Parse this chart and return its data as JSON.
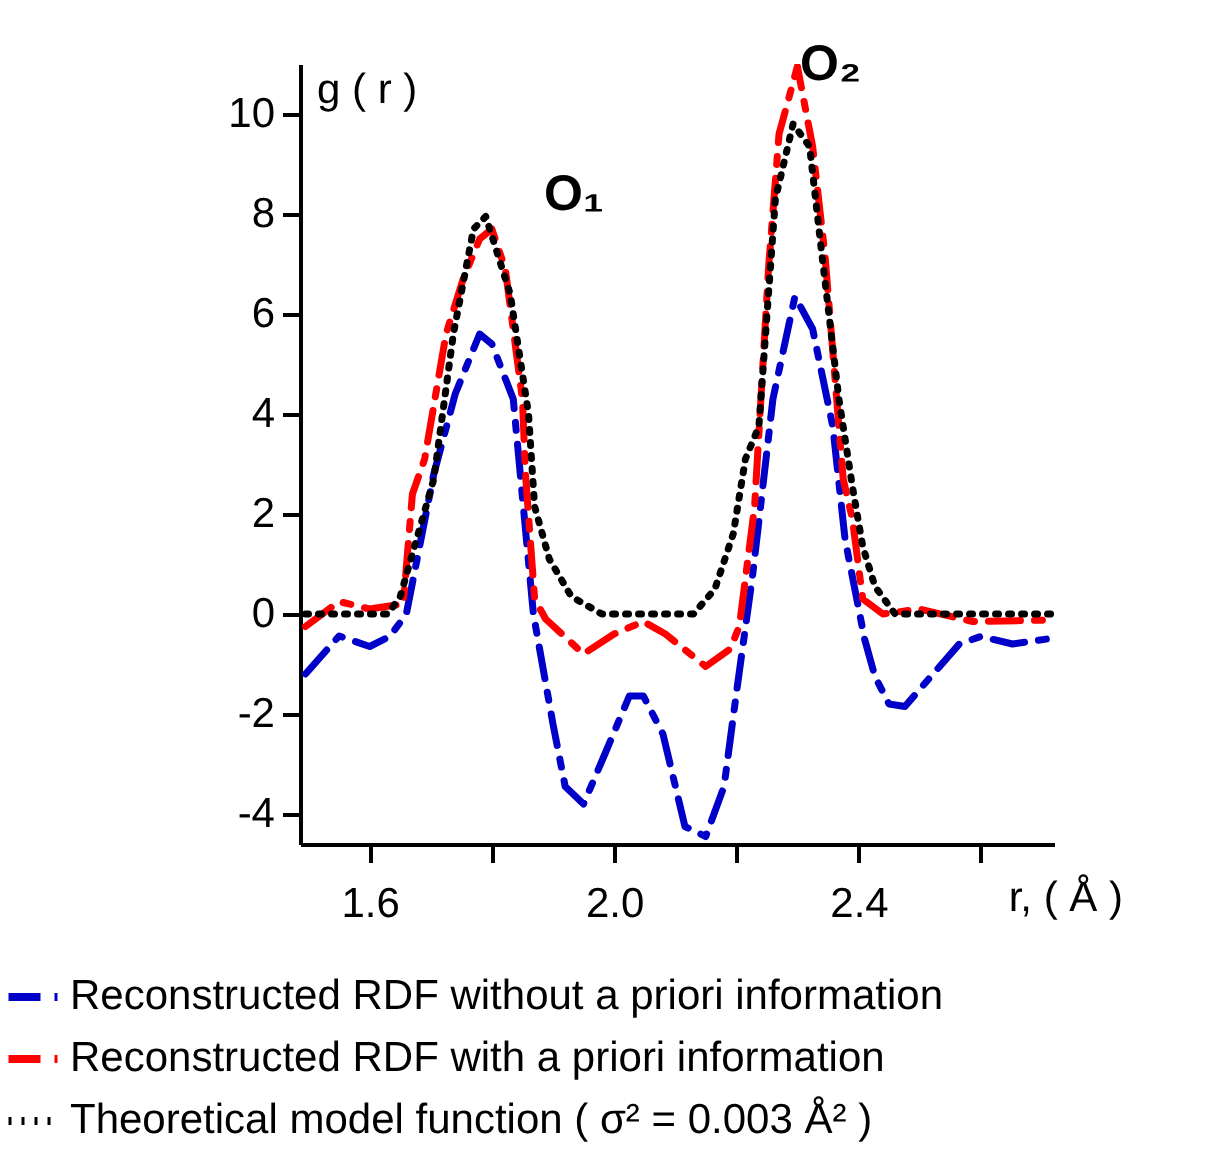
{
  "chart_data": {
    "type": "line",
    "xlabel": "r, ( Å )",
    "ylabel": "g ( r )",
    "xlim": [
      1.486,
      2.72
    ],
    "ylim": [
      -4.6,
      11
    ],
    "xticks": [
      1.6,
      {
        "value": 1.8,
        "label": null
      },
      {
        "value": 2.0,
        "label": "2.0"
      },
      {
        "value": 2.2,
        "label": null
      },
      2.4,
      {
        "value": 2.6,
        "label": null
      }
    ],
    "yticks": [
      -4,
      -2,
      0,
      2,
      4,
      6,
      8,
      10
    ],
    "grid": false,
    "legend": "bottom",
    "marker": "none",
    "annotations": [
      "O₁",
      "O₂"
    ],
    "series": [
      {
        "name": "Reconstructed RDF without a priori information",
        "color": "#0000c8",
        "line_style": "dashed",
        "x": [
          1.495,
          1.55,
          1.6,
          1.633,
          1.66,
          1.705,
          1.74,
          1.78,
          1.8,
          1.835,
          1.868,
          1.9,
          1.92,
          1.95,
          1.985,
          2.025,
          2.048,
          2.08,
          2.116,
          2.15,
          2.18,
          2.2,
          2.227,
          2.26,
          2.296,
          2.325,
          2.358,
          2.378,
          2.41,
          2.427,
          2.45,
          2.476,
          2.515,
          2.565,
          2.6,
          2.652,
          2.72
        ],
        "values": [
          -1.2,
          -0.44,
          -0.65,
          -0.45,
          0,
          2.8,
          4.4,
          5.6,
          5.4,
          4.3,
          0,
          -2.2,
          -3.45,
          -3.8,
          -2.8,
          -1.64,
          -1.64,
          -2.4,
          -4.25,
          -4.45,
          -3.45,
          -1.6,
          0.8,
          4.3,
          6.35,
          5.7,
          3.75,
          1.5,
          -0.5,
          -1.25,
          -1.8,
          -1.85,
          -1.3,
          -0.6,
          -0.45,
          -0.6,
          -0.48
        ]
      },
      {
        "name": "Reconstructed RDF with a priori information",
        "color": "#ff0000",
        "line_style": "dashed",
        "x": [
          1.495,
          1.55,
          1.6,
          1.655,
          1.67,
          1.69,
          1.725,
          1.753,
          1.78,
          1.8,
          1.822,
          1.85,
          1.855,
          1.87,
          1.888,
          1.95,
          2.0,
          2.048,
          2.084,
          2.15,
          2.19,
          2.205,
          2.23,
          2.253,
          2.27,
          2.3,
          2.325,
          2.345,
          2.375,
          2.39,
          2.407,
          2.44,
          2.5,
          2.587,
          2.72
        ],
        "values": [
          -0.25,
          0.25,
          0.1,
          0.2,
          2.4,
          3.1,
          5.6,
          6.7,
          7.5,
          7.7,
          6.9,
          4.3,
          2.8,
          0.3,
          -0.1,
          -0.8,
          -0.4,
          -0.15,
          -0.4,
          -1.05,
          -0.7,
          -0.25,
          2.15,
          6.95,
          9.6,
          10.95,
          9.35,
          7.2,
          2.7,
          1.9,
          0.3,
          0,
          0.1,
          -0.15,
          -0.12
        ]
      },
      {
        "name": "Theoretical model function ( σ² = 0.003 Å² )",
        "color": "#000000",
        "line_style": "dotted",
        "x": [
          1.495,
          1.63,
          1.65,
          1.705,
          1.737,
          1.77,
          1.79,
          1.83,
          1.86,
          1.87,
          1.894,
          1.93,
          1.98,
          2.13,
          2.165,
          2.195,
          2.215,
          2.237,
          2.264,
          2.293,
          2.32,
          2.34,
          2.368,
          2.39,
          2.407,
          2.427,
          2.46,
          2.72
        ],
        "values": [
          0,
          0,
          0.35,
          2.7,
          5.6,
          7.7,
          7.95,
          6.4,
          4.0,
          2.15,
          1.1,
          0.35,
          0,
          0,
          0.5,
          1.6,
          3.1,
          3.75,
          8.3,
          9.8,
          9.35,
          7.2,
          4.3,
          2.55,
          1.35,
          0.55,
          0,
          0
        ]
      }
    ]
  }
}
